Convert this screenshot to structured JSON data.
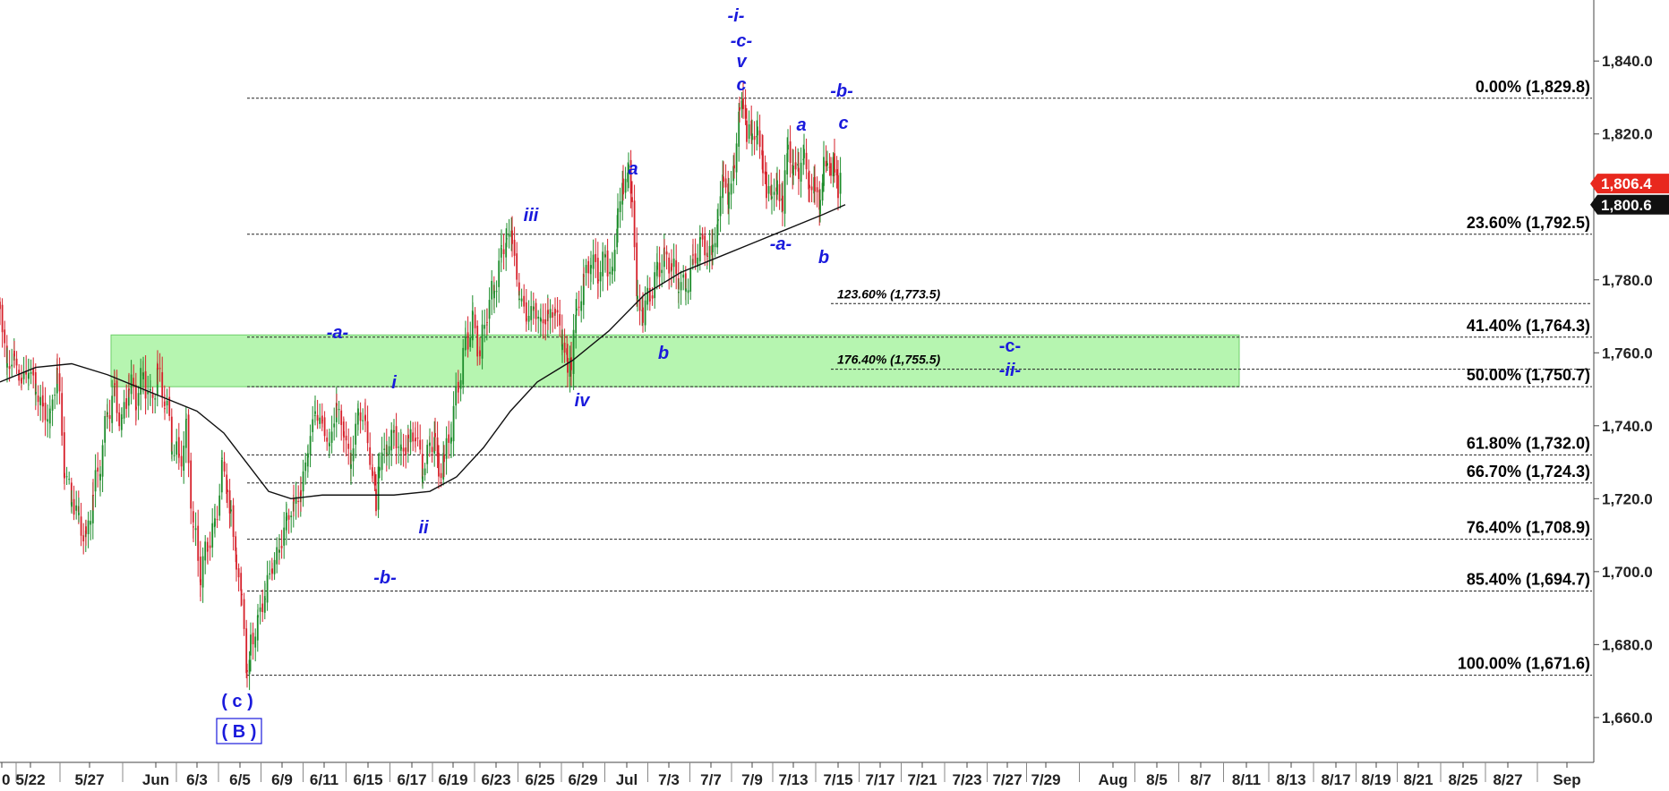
{
  "chart_data": {
    "type": "candlestick",
    "y_axis": {
      "ticks": [
        1660,
        1680,
        1700,
        1720,
        1740,
        1760,
        1780,
        1800,
        1820,
        1840
      ],
      "tick_labels": [
        "1,660.0",
        "1,680.0",
        "1,700.0",
        "1,720.0",
        "1,740.0",
        "1,760.0",
        "1,780.0",
        "1,800.0",
        "1,820.0",
        "1,840.0"
      ],
      "range": [
        1645,
        1862
      ]
    },
    "x_axis": {
      "tick_labels": [
        "0",
        "5/22",
        "5/27",
        "Jun",
        "6/3",
        "6/5",
        "6/9",
        "6/11",
        "6/15",
        "6/17",
        "6/19",
        "6/23",
        "6/25",
        "6/29",
        "Jul",
        "7/3",
        "7/7",
        "7/9",
        "7/13",
        "7/15",
        "7/17",
        "7/21",
        "7/23",
        "7/27",
        "7/29",
        "Aug",
        "8/5",
        "8/7",
        "8/11",
        "8/13",
        "8/17",
        "8/19",
        "8/21",
        "8/25",
        "8/27",
        "Sep"
      ]
    },
    "fib_levels": [
      {
        "label": "0.00% (1,829.8)",
        "value": 1829.8
      },
      {
        "label": "23.60% (1,792.5)",
        "value": 1792.5
      },
      {
        "label": "41.40% (1,764.3)",
        "value": 1764.3
      },
      {
        "label": "50.00% (1,750.7)",
        "value": 1750.7
      },
      {
        "label": "61.80% (1,732.0)",
        "value": 1732.0
      },
      {
        "label": "66.70% (1,724.3)",
        "value": 1724.3
      },
      {
        "label": "76.40% (1,708.9)",
        "value": 1708.9
      },
      {
        "label": "85.40% (1,694.7)",
        "value": 1694.7
      },
      {
        "label": "100.00% (1,671.6)",
        "value": 1671.6
      }
    ],
    "extension_levels": [
      {
        "label": "123.60% (1,773.5)",
        "value": 1773.5
      },
      {
        "label": "176.40% (1,755.5)",
        "value": 1755.5
      }
    ],
    "target_zone": {
      "low": 1750.7,
      "high": 1764.9,
      "color": "#b6f5b0"
    },
    "last_price": {
      "label": "1,806.4",
      "value": 1806.4,
      "color": "#e8281e"
    },
    "moving_average_last": {
      "label": "1,800.6",
      "value": 1800.6,
      "color": "#111111"
    },
    "wave_labels": [
      {
        "text": "( c )",
        "style": "upright"
      },
      {
        "text": "-b-",
        "style": "italic"
      },
      {
        "text": "ii",
        "style": "italic"
      },
      {
        "text": "i",
        "style": "italic"
      },
      {
        "text": "-a-",
        "style": "italic"
      },
      {
        "text": "iii",
        "style": "italic"
      },
      {
        "text": "iv",
        "style": "italic"
      },
      {
        "text": "a",
        "style": "italic"
      },
      {
        "text": "b",
        "style": "italic"
      },
      {
        "text": "-i-",
        "style": "italic"
      },
      {
        "text": "-c-",
        "style": "italic"
      },
      {
        "text": "v",
        "style": "italic"
      },
      {
        "text": "c",
        "style": "italic"
      },
      {
        "text": "-a-",
        "style": "italic"
      },
      {
        "text": "a",
        "style": "italic"
      },
      {
        "text": "b",
        "style": "italic"
      },
      {
        "text": "-b-",
        "style": "italic"
      },
      {
        "text": "c",
        "style": "italic"
      },
      {
        "text": "-c-",
        "style": "upright"
      },
      {
        "text": "-ii-",
        "style": "italic"
      }
    ],
    "boxed_label": {
      "text": "( B )"
    },
    "grid": false,
    "colors": {
      "up": "#1c8c2a",
      "down": "#d6202a",
      "label": "#1a1adc",
      "ma": "#111111"
    }
  }
}
